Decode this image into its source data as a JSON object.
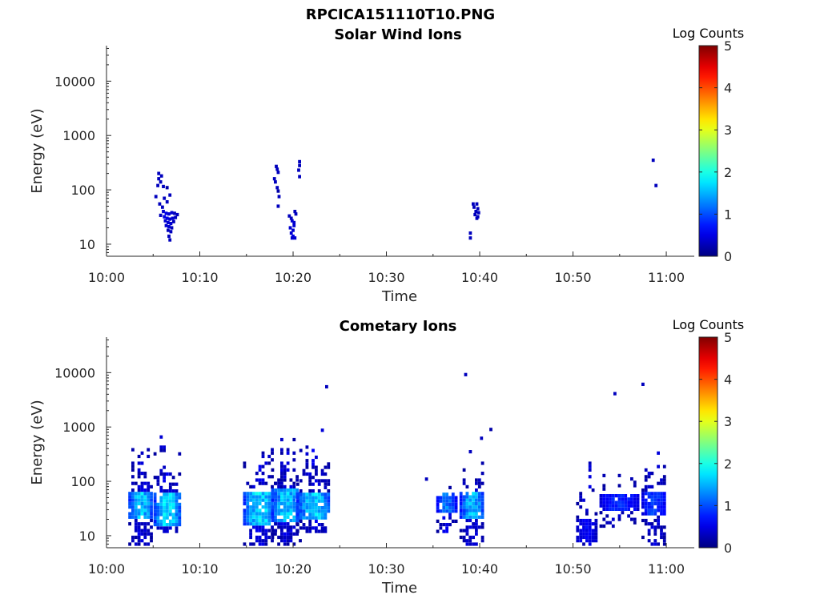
{
  "figure_title": "RPCICA151110T10.PNG",
  "chart_data": [
    {
      "type": "heatmap",
      "title": "Solar Wind Ions",
      "xlabel": "Time",
      "ylabel": "Energy (eV)",
      "x_ticks": [
        "10:00",
        "10:10",
        "10:20",
        "10:30",
        "10:40",
        "10:50",
        "11:00"
      ],
      "x_range_minutes": [
        0,
        63
      ],
      "y_scale": "log",
      "y_ticks": [
        10,
        100,
        1000,
        10000
      ],
      "y_tick_labels": [
        "10",
        "100",
        "1000",
        "10000"
      ],
      "y_range": [
        6,
        45000
      ],
      "colorbar": {
        "label": "Log Counts",
        "min": 0,
        "max": 5,
        "ticks": [
          "0",
          "1",
          "2",
          "3",
          "4",
          "5"
        ],
        "colormap": "jet"
      },
      "cells": [
        [
          5.6,
          200,
          0.3
        ],
        [
          5.9,
          180,
          0.3
        ],
        [
          5.6,
          160,
          0.3
        ],
        [
          5.8,
          140,
          0.3
        ],
        [
          5.5,
          120,
          0.3
        ],
        [
          6.1,
          115,
          0.3
        ],
        [
          6.5,
          110,
          0.2
        ],
        [
          5.3,
          75,
          0.3
        ],
        [
          6.2,
          70,
          0.3
        ],
        [
          6.5,
          60,
          0.3
        ],
        [
          5.7,
          55,
          0.3
        ],
        [
          6.0,
          48,
          0.3
        ],
        [
          6.8,
          80,
          0.3
        ],
        [
          6.1,
          40,
          0.4
        ],
        [
          6.4,
          37,
          0.5
        ],
        [
          6.7,
          36,
          0.4
        ],
        [
          7.0,
          38,
          0.4
        ],
        [
          7.3,
          37,
          0.3
        ],
        [
          7.6,
          35,
          0.3
        ],
        [
          5.8,
          34,
          0.3
        ],
        [
          6.2,
          32,
          0.5
        ],
        [
          6.5,
          30,
          0.5
        ],
        [
          6.8,
          29,
          0.4
        ],
        [
          7.1,
          30,
          0.4
        ],
        [
          7.4,
          31,
          0.3
        ],
        [
          6.3,
          27,
          0.4
        ],
        [
          6.6,
          25,
          0.4
        ],
        [
          6.9,
          24,
          0.4
        ],
        [
          7.2,
          26,
          0.3
        ],
        [
          6.4,
          22,
          0.4
        ],
        [
          6.7,
          21,
          0.4
        ],
        [
          7.0,
          20,
          0.3
        ],
        [
          6.6,
          18,
          0.3
        ],
        [
          6.9,
          17,
          0.3
        ],
        [
          6.7,
          14,
          0.3
        ],
        [
          6.8,
          12,
          0.3
        ],
        [
          18.2,
          270,
          0.3
        ],
        [
          18.3,
          240,
          0.3
        ],
        [
          18.4,
          210,
          0.3
        ],
        [
          18.0,
          160,
          0.3
        ],
        [
          18.1,
          140,
          0.3
        ],
        [
          18.3,
          110,
          0.3
        ],
        [
          18.4,
          95,
          0.2
        ],
        [
          18.5,
          75,
          0.3
        ],
        [
          18.4,
          50,
          0.3
        ],
        [
          20.7,
          330,
          0.3
        ],
        [
          20.7,
          280,
          0.3
        ],
        [
          20.6,
          230,
          0.3
        ],
        [
          20.7,
          175,
          0.3
        ],
        [
          19.6,
          33,
          0.3
        ],
        [
          19.8,
          30,
          0.3
        ],
        [
          19.9,
          27,
          0.4
        ],
        [
          20.1,
          25,
          0.4
        ],
        [
          20.2,
          40,
          0.3
        ],
        [
          20.3,
          36,
          0.3
        ],
        [
          20.1,
          22,
          0.4
        ],
        [
          19.7,
          20,
          0.4
        ],
        [
          20.0,
          18,
          0.4
        ],
        [
          19.8,
          16,
          0.4
        ],
        [
          20.0,
          14,
          0.5
        ],
        [
          19.9,
          13,
          0.4
        ],
        [
          20.2,
          13,
          0.4
        ],
        [
          39.0,
          16,
          0.3
        ],
        [
          39.0,
          13,
          0.3
        ],
        [
          39.3,
          55,
          0.3
        ],
        [
          39.7,
          55,
          0.3
        ],
        [
          39.4,
          48,
          0.3
        ],
        [
          39.8,
          45,
          0.3
        ],
        [
          39.6,
          40,
          0.3
        ],
        [
          39.9,
          38,
          0.3
        ],
        [
          39.5,
          35,
          0.3
        ],
        [
          39.8,
          32,
          0.3
        ],
        [
          39.7,
          30,
          0.3
        ],
        [
          58.6,
          350,
          0.3
        ],
        [
          58.9,
          120,
          0.3
        ]
      ]
    },
    {
      "type": "heatmap",
      "title": "Cometary Ions",
      "xlabel": "Time",
      "ylabel": "Energy (eV)",
      "x_ticks": [
        "10:00",
        "10:10",
        "10:20",
        "10:30",
        "10:40",
        "10:50",
        "11:00"
      ],
      "x_range_minutes": [
        0,
        63
      ],
      "y_scale": "log",
      "y_ticks": [
        10,
        100,
        1000,
        10000
      ],
      "y_tick_labels": [
        "10",
        "100",
        "1000",
        "10000"
      ],
      "y_range": [
        6,
        45000
      ],
      "colorbar": {
        "label": "Log Counts",
        "min": 0,
        "max": 5,
        "ticks": [
          "0",
          "1",
          "2",
          "3",
          "4",
          "5"
        ],
        "colormap": "jet"
      },
      "bursts": [
        {
          "t0": 2.5,
          "t1": 5.0,
          "e_top": 1000,
          "e_bot": 7,
          "peak": 1.6,
          "density": 0.75,
          "band": [
            20,
            60
          ]
        },
        {
          "t0": 5.2,
          "t1": 8.0,
          "e_top": 1000,
          "e_bot": 12,
          "peak": 1.7,
          "density": 0.8,
          "band": [
            14,
            60
          ]
        },
        {
          "t0": 14.8,
          "t1": 18.2,
          "e_top": 500,
          "e_bot": 7,
          "peak": 1.7,
          "density": 0.7,
          "band": [
            15,
            60
          ]
        },
        {
          "t0": 17.8,
          "t1": 20.8,
          "e_top": 900,
          "e_bot": 7,
          "peak": 1.6,
          "density": 0.72,
          "band": [
            18,
            70
          ]
        },
        {
          "t0": 20.5,
          "t1": 24.0,
          "e_top": 1000,
          "e_bot": 12,
          "peak": 1.6,
          "density": 0.72,
          "band": [
            20,
            60
          ]
        },
        {
          "t0": 35.5,
          "t1": 37.5,
          "e_top": 300,
          "e_bot": 12,
          "peak": 1.2,
          "density": 0.55,
          "band": [
            25,
            60
          ]
        },
        {
          "t0": 38.0,
          "t1": 40.5,
          "e_top": 600,
          "e_bot": 7,
          "peak": 1.5,
          "density": 0.65,
          "band": [
            20,
            60
          ]
        },
        {
          "t0": 50.5,
          "t1": 52.5,
          "e_top": 250,
          "e_bot": 7,
          "peak": 0.6,
          "density": 0.4,
          "band": [
            8,
            20
          ]
        },
        {
          "t0": 53.0,
          "t1": 57.0,
          "e_top": 250,
          "e_bot": 15,
          "peak": 0.8,
          "density": 0.4,
          "band": [
            30,
            60
          ]
        },
        {
          "t0": 57.5,
          "t1": 60.0,
          "e_top": 700,
          "e_bot": 7,
          "peak": 0.9,
          "density": 0.55,
          "band": [
            25,
            60
          ]
        }
      ],
      "isolated": [
        [
          23.6,
          5500,
          0.3
        ],
        [
          38.5,
          9200,
          0.3
        ],
        [
          54.5,
          4100,
          0.3
        ],
        [
          57.5,
          6100,
          0.3
        ],
        [
          34.3,
          110,
          0.3
        ],
        [
          40.2,
          620,
          0.3
        ],
        [
          39.0,
          350,
          0.3
        ],
        [
          41.2,
          900,
          0.2
        ]
      ]
    }
  ]
}
